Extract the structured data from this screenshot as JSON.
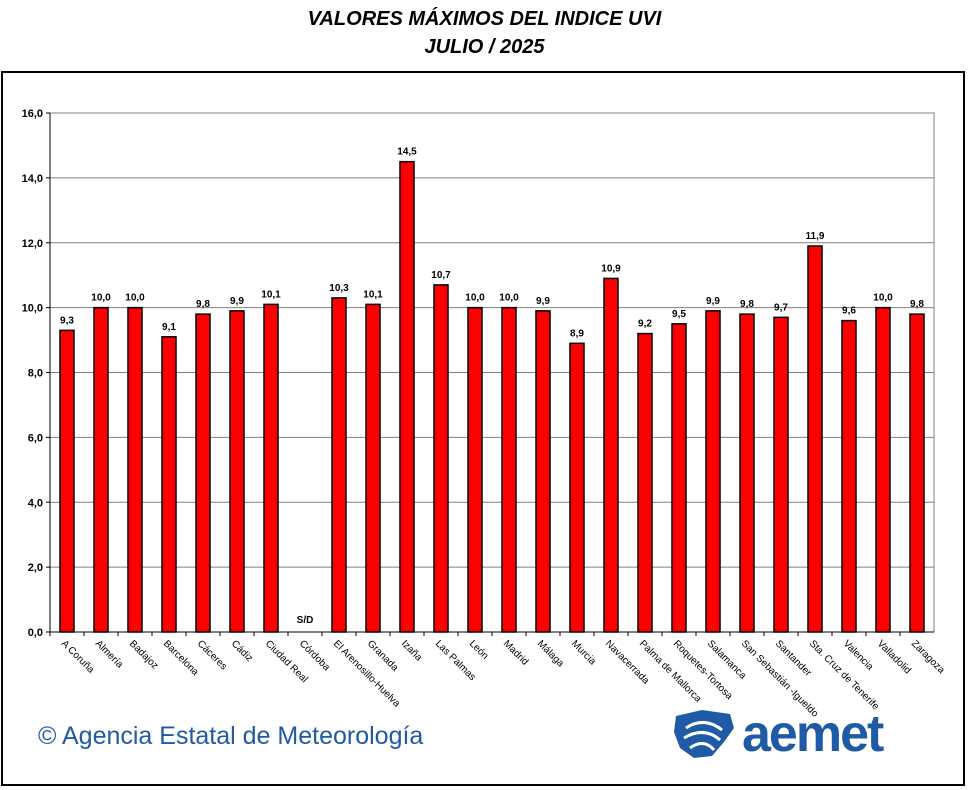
{
  "chart_data": {
    "type": "bar",
    "title": "VALORES MÁXIMOS DEL INDICE UVI",
    "subtitle": "JULIO / 2025",
    "xlabel": "",
    "ylabel": "",
    "ylim": [
      0,
      16
    ],
    "yticks": [
      "0,0",
      "2,0",
      "4,0",
      "6,0",
      "8,0",
      "10,0",
      "12,0",
      "14,0",
      "16,0"
    ],
    "grid": true,
    "bar_color": "#ff0000",
    "categories": [
      "A Coruña",
      "Almería",
      "Badajoz",
      "Barcelona",
      "Cáceres",
      "Cádiz",
      "Ciudad Real",
      "Córdoba",
      "El Arenosillo-Huelva",
      "Granada",
      "Izaña",
      "Las Palmas",
      "León",
      "Madrid",
      "Málaga",
      "Murcia",
      "Navacerrada",
      "Palma de Mallorca",
      "Roquetes-Tortosa",
      "Salamanca",
      "San Sebastián -Igueldo",
      "Santander",
      "Sta. Cruz de Tenerife",
      "Valencia",
      "Valladolid",
      "Zaragoza"
    ],
    "values": [
      9.3,
      10.0,
      10.0,
      9.1,
      9.8,
      9.9,
      10.1,
      null,
      10.3,
      10.1,
      14.5,
      10.7,
      10.0,
      10.0,
      9.9,
      8.9,
      10.9,
      9.2,
      9.5,
      9.9,
      9.8,
      9.7,
      11.9,
      9.6,
      10.0,
      9.8
    ],
    "labels": [
      "9,3",
      "10,0",
      "10,0",
      "9,1",
      "9,8",
      "9,9",
      "10,1",
      "S/D",
      "10,3",
      "10,1",
      "14,5",
      "10,7",
      "10,0",
      "10,0",
      "9,9",
      "8,9",
      "10,9",
      "9,2",
      "9,5",
      "9,9",
      "9,8",
      "9,7",
      "11,9",
      "9,6",
      "10,0",
      "9,8"
    ]
  },
  "footer": {
    "copyright": "© Agencia Estatal de Meteorología",
    "logo": "aemet"
  }
}
